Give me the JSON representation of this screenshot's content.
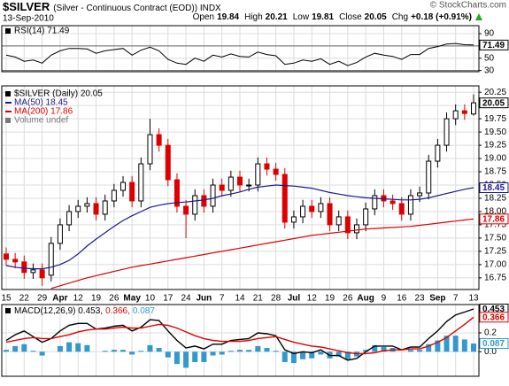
{
  "header": {
    "symbol": "$SILVER",
    "title": "(Silver - Continuous Contract (EOD)) INDX",
    "date": "13-Sep-2010",
    "credit": "© StockCharts.com",
    "quote": [
      {
        "label": "Open",
        "value": 19.84
      },
      {
        "label": "High",
        "value": 20.21
      },
      {
        "label": "Low",
        "value": 19.81
      },
      {
        "label": "Close",
        "value": 20.05
      },
      {
        "label": "Chg",
        "value": "+0.18 (+0.91%)"
      }
    ]
  },
  "chart_data": [
    {
      "type": "line",
      "ylim": [
        28,
        103
      ],
      "yticks": [
        90,
        70,
        50,
        30
      ],
      "bands": [
        70,
        30
      ],
      "grid": true,
      "series": [
        {
          "name": "RSI(14) 71.49",
          "color": "#000000",
          "values": [
            55,
            52,
            45,
            47,
            42,
            55,
            62,
            66,
            66,
            65,
            58,
            62,
            64,
            66,
            55,
            63,
            68,
            62,
            48,
            42,
            40,
            50,
            45,
            55,
            52,
            57,
            53,
            52,
            60,
            56,
            54,
            40,
            42,
            47,
            45,
            49,
            40,
            45,
            38,
            43,
            52,
            58,
            55,
            53,
            48,
            56,
            56,
            66,
            69,
            73,
            74,
            72,
            71.49
          ]
        }
      ]
    },
    {
      "type": "candlestick",
      "ylim": [
        16.53,
        20.37
      ],
      "grid": true,
      "yticks": [
        16.75,
        {
          "value": 17,
          "label": "17.00"
        },
        17.25,
        {
          "value": 17.5,
          "label": "17.50"
        },
        17.75,
        {
          "value": 18,
          "label": "18.00"
        },
        18.25,
        {
          "value": 18.5,
          "label": "18.50"
        },
        18.75,
        {
          "value": 19,
          "label": "19.00"
        },
        19.25,
        {
          "value": 19.5,
          "label": "19.50"
        },
        19.75,
        {
          "value": 20,
          "label": "20.00"
        },
        20.25
      ],
      "categories": [
        "15",
        null,
        "22",
        null,
        "29",
        null,
        "Apr",
        null,
        "12",
        null,
        "19",
        null,
        "26",
        null,
        "May",
        null,
        "10",
        null,
        "17",
        null,
        "24",
        null,
        "Jun",
        null,
        "7",
        null,
        "14",
        null,
        "21",
        null,
        "28",
        null,
        "Jul",
        null,
        "12",
        null,
        "19",
        null,
        "26",
        null,
        "Aug",
        null,
        "9",
        null,
        "16",
        null,
        "23",
        null,
        "Sep",
        null,
        "7",
        null,
        "13"
      ],
      "ohlc": {
        "name": "$SILVER (Daily) 20.05",
        "up_color": "#000000",
        "down_color": "#dd0000",
        "open": [
          17.2,
          17.1,
          17.05,
          16.85,
          16.9,
          16.8,
          17.4,
          17.75,
          18,
          18.1,
          18.15,
          17.95,
          18.2,
          18.4,
          18.55,
          18.2,
          18.9,
          19.45,
          19.25,
          18.6,
          18.1,
          17.95,
          18.3,
          18.1,
          18.5,
          18.4,
          18.65,
          18.5,
          18.5,
          18.9,
          18.8,
          18.7,
          17.8,
          17.9,
          18.1,
          18,
          18.15,
          17.75,
          17.9,
          17.6,
          17.75,
          18.05,
          18.3,
          18.2,
          18.15,
          17.95,
          18.3,
          18.35,
          18.95,
          19.25,
          19.75,
          19.9,
          19.84
        ],
        "high": [
          17.32,
          17.22,
          17.17,
          17.02,
          17.02,
          17.52,
          17.87,
          18.12,
          18.22,
          18.27,
          18.27,
          18.32,
          18.52,
          18.67,
          18.67,
          19.02,
          19.75,
          19.57,
          19.37,
          18.72,
          18.22,
          18.42,
          18.42,
          18.62,
          18.62,
          18.77,
          18.77,
          18.62,
          19.02,
          19.02,
          18.92,
          18.82,
          18.02,
          18.22,
          18.22,
          18.27,
          18.27,
          18.02,
          18.02,
          17.87,
          18.17,
          18.42,
          18.42,
          18.32,
          18.27,
          18.42,
          18.47,
          19.07,
          19.37,
          19.87,
          20.02,
          20.02,
          20.21
        ],
        "low": [
          16.98,
          16.93,
          16.73,
          16.73,
          16.6,
          16.68,
          17.28,
          17.63,
          17.88,
          17.98,
          17.83,
          17.83,
          18.08,
          18.28,
          18.08,
          18.08,
          18.78,
          19.13,
          18.48,
          17.98,
          17.5,
          17.83,
          17.98,
          17.98,
          18.28,
          18.28,
          18.38,
          18.38,
          18.38,
          18.68,
          18.58,
          17.68,
          17.68,
          17.78,
          17.88,
          17.88,
          17.63,
          17.63,
          17.48,
          17.48,
          17.63,
          17.93,
          18.08,
          18.03,
          17.83,
          17.83,
          18.18,
          18.23,
          18.83,
          19.13,
          19.63,
          19.73,
          19.81
        ],
        "close": [
          17.1,
          17.05,
          16.85,
          16.9,
          16.75,
          17.4,
          17.75,
          18,
          18.1,
          18.15,
          17.95,
          18.2,
          18.4,
          18.55,
          18.2,
          18.9,
          19.45,
          19.25,
          18.6,
          18.1,
          17.95,
          18.3,
          18.1,
          18.5,
          18.4,
          18.65,
          18.5,
          18.5,
          18.9,
          18.8,
          18.7,
          17.8,
          17.9,
          18.1,
          18,
          18.15,
          17.75,
          17.9,
          17.6,
          17.75,
          18.05,
          18.3,
          18.2,
          18.15,
          17.95,
          18.3,
          18.35,
          18.95,
          19.25,
          19.75,
          19.9,
          19.85,
          20.05
        ]
      },
      "series": [
        {
          "name": "MA(50) 18.45",
          "color": "#1a1a8c",
          "values": [
            16.98,
            16.95,
            16.93,
            16.92,
            16.92,
            16.95,
            17,
            17.08,
            17.2,
            17.35,
            17.48,
            17.6,
            17.72,
            17.83,
            17.92,
            18,
            18.08,
            18.12,
            18.15,
            18.17,
            18.18,
            18.2,
            18.22,
            18.25,
            18.3,
            18.33,
            18.37,
            18.42,
            18.46,
            18.48,
            18.5,
            18.49,
            18.48,
            18.46,
            18.44,
            18.4,
            18.36,
            18.33,
            18.3,
            18.28,
            18.26,
            18.25,
            18.24,
            18.23,
            18.22,
            18.22,
            18.23,
            18.26,
            18.3,
            18.34,
            18.38,
            18.42,
            18.45
          ]
        },
        {
          "name": "MA(200) 17.86",
          "color": "#dd0000",
          "values": [
            null,
            null,
            null,
            null,
            null,
            16.55,
            16.6,
            16.65,
            16.7,
            16.75,
            16.79,
            16.83,
            16.87,
            16.91,
            16.95,
            16.98,
            17.01,
            17.04,
            17.07,
            17.1,
            17.13,
            17.16,
            17.19,
            17.22,
            17.25,
            17.28,
            17.31,
            17.34,
            17.37,
            17.4,
            17.43,
            17.46,
            17.49,
            17.52,
            17.55,
            17.57,
            17.59,
            17.61,
            17.63,
            17.65,
            17.67,
            17.68,
            17.69,
            17.7,
            17.71,
            17.72,
            17.74,
            17.76,
            17.78,
            17.8,
            17.82,
            17.84,
            17.86
          ]
        }
      ],
      "legend_extra": "Volume undef"
    },
    {
      "type": "macd",
      "ylim": [
        -0.26,
        0.5
      ],
      "yticks": [
        {
          "value": 0,
          "label": "0.0"
        },
        0.2
      ],
      "grid": true,
      "legend": [
        {
          "text": "MACD(12,26,9) 0.453,",
          "color": "#000000"
        },
        {
          "text": "0.366,",
          "color": "#dd0000"
        },
        {
          "text": "0.087",
          "color": "#3399cc"
        }
      ],
      "series": [
        {
          "color": "#000000",
          "values": [
            0.12,
            0.18,
            0.22,
            0.16,
            0.1,
            0.14,
            0.22,
            0.28,
            0.3,
            0.3,
            0.24,
            0.25,
            0.27,
            0.28,
            0.22,
            0.26,
            0.34,
            0.33,
            0.22,
            0.12,
            0.04,
            0.06,
            0.03,
            0.08,
            0.08,
            0.12,
            0.13,
            0.14,
            0.2,
            0.19,
            0.17,
            0.02,
            -0.02,
            0,
            -0.01,
            0.02,
            -0.04,
            -0.04,
            -0.09,
            -0.07,
            0,
            0.06,
            0.06,
            0.06,
            0.02,
            0.05,
            0.05,
            0.14,
            0.22,
            0.32,
            0.39,
            0.42,
            0.453
          ]
        },
        {
          "color": "#dd0000",
          "values": [
            0.1,
            0.12,
            0.14,
            0.15,
            0.14,
            0.14,
            0.16,
            0.18,
            0.21,
            0.23,
            0.24,
            0.24,
            0.25,
            0.26,
            0.25,
            0.25,
            0.27,
            0.29,
            0.28,
            0.25,
            0.21,
            0.17,
            0.14,
            0.12,
            0.11,
            0.11,
            0.11,
            0.12,
            0.14,
            0.15,
            0.16,
            0.13,
            0.1,
            0.08,
            0.06,
            0.05,
            0.03,
            0.01,
            -0.01,
            -0.02,
            -0.02,
            -0.01,
            0.01,
            0.02,
            0.02,
            0.03,
            0.03,
            0.06,
            0.1,
            0.15,
            0.22,
            0.29,
            0.366
          ]
        },
        {
          "color": "#3399cc",
          "style": "bars",
          "values": [
            0.02,
            0.06,
            0.08,
            0.01,
            -0.04,
            0,
            0.06,
            0.1,
            0.09,
            0.07,
            0,
            0.01,
            0.02,
            0.02,
            -0.03,
            0.01,
            0.07,
            0.04,
            -0.06,
            -0.13,
            -0.17,
            -0.11,
            -0.11,
            -0.04,
            -0.03,
            0.01,
            0.02,
            0.02,
            0.06,
            0.04,
            0.01,
            -0.11,
            -0.12,
            -0.08,
            -0.07,
            -0.03,
            -0.07,
            -0.05,
            -0.08,
            -0.05,
            0.02,
            0.07,
            0.05,
            0.04,
            0,
            0.02,
            0.02,
            0.08,
            0.12,
            0.17,
            0.17,
            0.13,
            0.087
          ]
        }
      ]
    }
  ]
}
